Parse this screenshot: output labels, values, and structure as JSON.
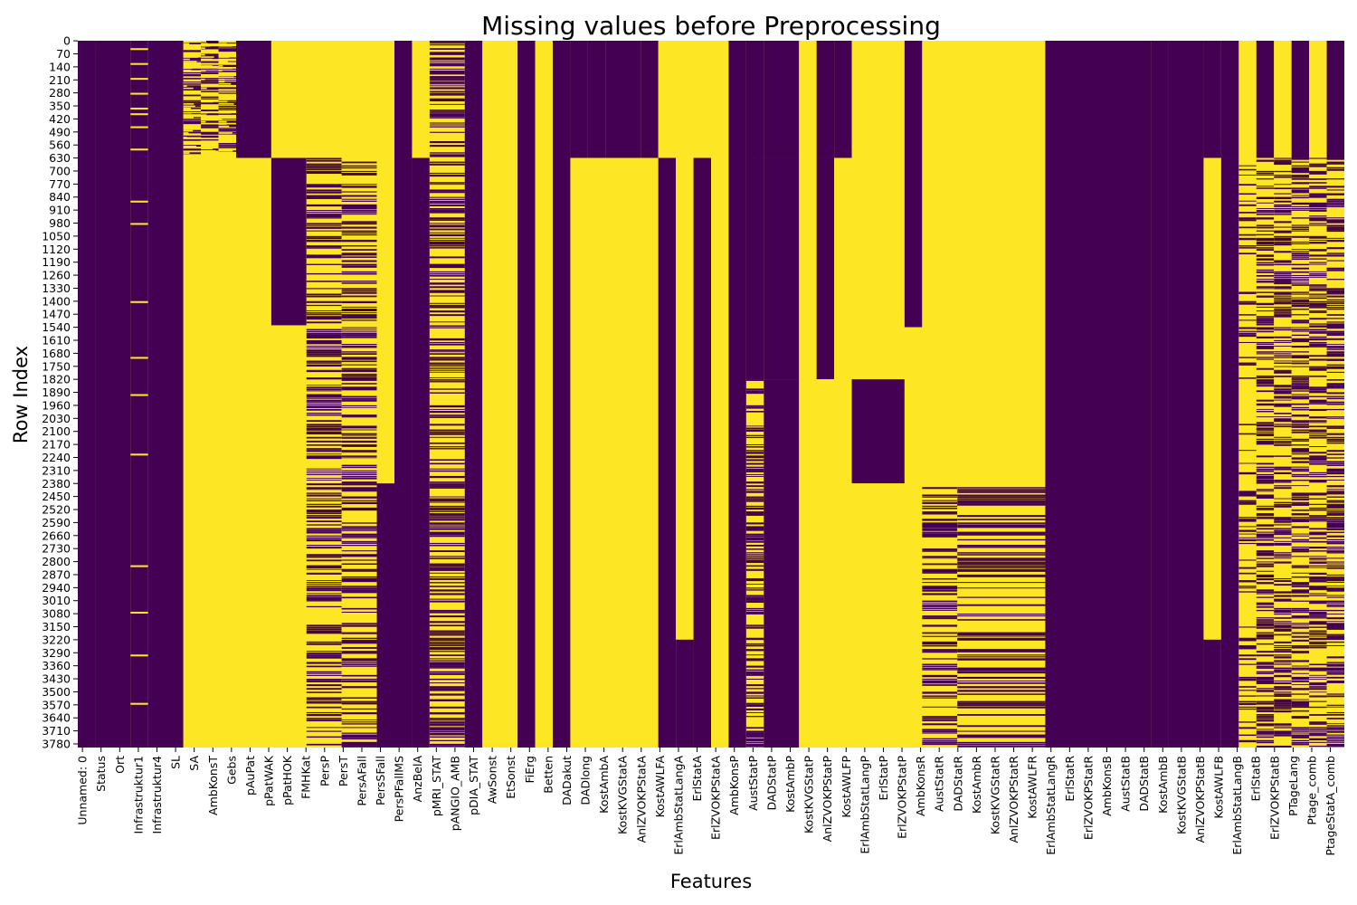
{
  "chart_data": {
    "type": "heatmap",
    "title": "Missing values before Preprocessing",
    "xlabel": "Features",
    "ylabel": "Row Index",
    "n_rows": 3800,
    "colors": {
      "missing": "#fde725",
      "present": "#440154"
    },
    "ylim": [
      0,
      3800
    ],
    "y_tick_step": 70,
    "x_tick_labels": [
      "Unnamed: 0",
      "Status",
      "Ort",
      "Infrastruktur1",
      "Infrastruktur4",
      "SL",
      "SA",
      "AmbKonsT",
      "Gebs",
      "pAuPat",
      "pPatWAK",
      "pPatHOK",
      "FMHKat",
      "PersP",
      "PersT",
      "PersAFall",
      "PersSFall",
      "PersPFallMS",
      "AnzBelA",
      "pMRI_STAT",
      "pANGIO_AMB",
      "pDIA_STAT",
      "AwSonst",
      "EtSonst",
      "FiErg",
      "Betten",
      "DADakut",
      "DADlong",
      "KostAmbA",
      "KostKVGStatA",
      "AnlZVOKPStatA",
      "KostAWLFA",
      "ErlAmbStatLangA",
      "ErlStatA",
      "ErlZVOKPStatA",
      "AmbKonsP",
      "AustStatP",
      "DADStatP",
      "KostAmbP",
      "KostKVGStatP",
      "AnlZVOKPStatP",
      "KostAWLFP",
      "ErlAmbStatLangP",
      "ErlStatP",
      "ErlZVOKPStatP",
      "AmbKonsR",
      "AustStatR",
      "DADStatR",
      "KostAmbR",
      "KostKVGStatR",
      "AnlZVOKPStatR",
      "KostAWLFR",
      "ErlAmbStatLangR",
      "ErlStatR",
      "ErlZVOKPStatR",
      "AmbKonsB",
      "AustStatB",
      "DADStatB",
      "KostAmbB",
      "KostKVGStatB",
      "AnlZVOKPStatB",
      "KostAWLFB",
      "ErlAmbStatLangB",
      "ErlStatB",
      "ErlZVOKPStatB",
      "PTageLang",
      "Ptage_comb",
      "PtageStatA_comb"
    ],
    "columns": [
      {
        "c": [
          0,
          1
        ],
        "s": [
          [
            0,
            3800,
            "present"
          ]
        ]
      },
      {
        "c": [
          1,
          3
        ],
        "s": [
          [
            0,
            3800,
            "present"
          ]
        ]
      },
      {
        "c": [
          3,
          4
        ],
        "s": [
          [
            0,
            3800,
            "present"
          ],
          [
            40,
            50,
            "missing"
          ],
          [
            120,
            130,
            "missing"
          ],
          [
            200,
            210,
            "missing"
          ],
          [
            280,
            290,
            "missing"
          ],
          [
            360,
            370,
            "missing"
          ],
          [
            390,
            400,
            "missing"
          ],
          [
            460,
            470,
            "missing"
          ],
          [
            580,
            590,
            "missing"
          ],
          [
            860,
            870,
            "missing"
          ],
          [
            980,
            990,
            "missing"
          ],
          [
            1400,
            1410,
            "missing"
          ],
          [
            1700,
            1710,
            "missing"
          ],
          [
            1900,
            1910,
            "missing"
          ],
          [
            2220,
            2230,
            "missing"
          ],
          [
            2820,
            2830,
            "missing"
          ],
          [
            3070,
            3080,
            "missing"
          ],
          [
            3300,
            3310,
            "missing"
          ],
          [
            3560,
            3570,
            "missing"
          ]
        ],
        "noise": "light"
      },
      {
        "c": [
          4,
          6
        ],
        "s": [
          [
            0,
            3800,
            "present"
          ]
        ]
      },
      {
        "c": [
          6,
          7
        ],
        "s": [
          [
            0,
            610,
            "noise-heavy"
          ],
          [
            610,
            3800,
            "missing"
          ]
        ],
        "noise": "stripes"
      },
      {
        "c": [
          7,
          8
        ],
        "s": [
          [
            0,
            610,
            "noise-heavy"
          ],
          [
            610,
            3800,
            "missing"
          ]
        ],
        "noise": "stripes"
      },
      {
        "c": [
          8,
          9
        ],
        "s": [
          [
            0,
            610,
            "noise-heavy"
          ],
          [
            610,
            3800,
            "missing"
          ]
        ],
        "noise": "stripes"
      },
      {
        "c": [
          9,
          11
        ],
        "s": [
          [
            0,
            630,
            "present"
          ],
          [
            630,
            1530,
            "missing"
          ],
          [
            1530,
            3800,
            "missing"
          ]
        ]
      },
      {
        "c": [
          11,
          13
        ],
        "s": [
          [
            0,
            630,
            "missing"
          ],
          [
            630,
            1530,
            "present"
          ],
          [
            1530,
            3800,
            "missing"
          ]
        ]
      },
      {
        "c": [
          13,
          15
        ],
        "s": [
          [
            0,
            630,
            "missing"
          ],
          [
            630,
            3800,
            "noise-heavy"
          ]
        ]
      },
      {
        "c": [
          15,
          17
        ],
        "s": [
          [
            0,
            630,
            "missing"
          ],
          [
            630,
            3800,
            "noise-heavy"
          ]
        ]
      },
      {
        "c": [
          17,
          18
        ],
        "s": [
          [
            0,
            630,
            "missing"
          ],
          [
            630,
            2380,
            "missing"
          ],
          [
            2380,
            3800,
            "present"
          ]
        ]
      },
      {
        "c": [
          18,
          19
        ],
        "s": [
          [
            0,
            3800,
            "present"
          ]
        ]
      },
      {
        "c": [
          19,
          20
        ],
        "s": [
          [
            0,
            630,
            "missing"
          ],
          [
            630,
            3800,
            "present"
          ]
        ]
      },
      {
        "c": [
          20,
          22
        ],
        "s": [
          [
            0,
            3800,
            "noise-heavy"
          ]
        ]
      },
      {
        "c": [
          22,
          23
        ],
        "s": [
          [
            0,
            3800,
            "present"
          ]
        ]
      },
      {
        "c": [
          23,
          25
        ],
        "s": [
          [
            0,
            3800,
            "missing"
          ]
        ]
      },
      {
        "c": [
          25,
          26
        ],
        "s": [
          [
            0,
            3800,
            "present"
          ]
        ]
      },
      {
        "c": [
          26,
          27
        ],
        "s": [
          [
            0,
            3800,
            "missing"
          ]
        ]
      },
      {
        "c": [
          27,
          28
        ],
        "s": [
          [
            0,
            3800,
            "present"
          ]
        ]
      },
      {
        "c": [
          28,
          29
        ],
        "s": [
          [
            0,
            630,
            "present"
          ],
          [
            630,
            3800,
            "missing"
          ]
        ]
      },
      {
        "c": [
          29,
          30
        ],
        "s": [
          [
            0,
            630,
            "present"
          ],
          [
            630,
            3800,
            "missing"
          ]
        ]
      },
      {
        "c": [
          30,
          32
        ],
        "s": [
          [
            0,
            630,
            "present"
          ],
          [
            630,
            3800,
            "missing"
          ]
        ]
      },
      {
        "c": [
          32,
          33
        ],
        "s": [
          [
            0,
            630,
            "present"
          ],
          [
            630,
            3800,
            "missing"
          ]
        ]
      },
      {
        "c": [
          33,
          34
        ],
        "s": [
          [
            0,
            630,
            "missing"
          ],
          [
            630,
            3800,
            "present"
          ]
        ]
      },
      {
        "c": [
          34,
          35
        ],
        "s": [
          [
            0,
            630,
            "missing"
          ],
          [
            630,
            3220,
            "missing"
          ],
          [
            3220,
            3800,
            "present"
          ]
        ]
      },
      {
        "c": [
          35,
          36
        ],
        "s": [
          [
            0,
            630,
            "missing"
          ],
          [
            630,
            3800,
            "present"
          ]
        ]
      },
      {
        "c": [
          36,
          37
        ],
        "s": [
          [
            0,
            3800,
            "missing"
          ]
        ]
      },
      {
        "c": [
          37,
          38
        ],
        "s": [
          [
            0,
            3800,
            "present"
          ]
        ]
      },
      {
        "c": [
          38,
          39
        ],
        "s": [
          [
            0,
            630,
            "present"
          ],
          [
            630,
            1820,
            "present"
          ],
          [
            1820,
            3800,
            "noise-heavy"
          ]
        ]
      },
      {
        "c": [
          39,
          41
        ],
        "s": [
          [
            0,
            630,
            "present"
          ],
          [
            630,
            1820,
            "present"
          ],
          [
            1820,
            3800,
            "present"
          ]
        ]
      },
      {
        "c": [
          41,
          42
        ],
        "s": [
          [
            0,
            3800,
            "missing"
          ]
        ]
      },
      {
        "c": [
          42,
          43
        ],
        "s": [
          [
            0,
            630,
            "present"
          ],
          [
            630,
            1820,
            "present"
          ],
          [
            1820,
            3800,
            "missing"
          ]
        ]
      },
      {
        "c": [
          43,
          44
        ],
        "s": [
          [
            0,
            630,
            "present"
          ],
          [
            630,
            1820,
            "missing"
          ],
          [
            1820,
            3800,
            "missing"
          ]
        ]
      },
      {
        "c": [
          44,
          47
        ],
        "s": [
          [
            0,
            1820,
            "missing"
          ],
          [
            1820,
            2380,
            "present"
          ],
          [
            2380,
            3800,
            "missing"
          ]
        ]
      },
      {
        "c": [
          47,
          48
        ],
        "s": [
          [
            0,
            1540,
            "present"
          ],
          [
            1540,
            3800,
            "missing"
          ]
        ]
      },
      {
        "c": [
          48,
          50
        ],
        "s": [
          [
            0,
            2380,
            "missing"
          ],
          [
            2380,
            3800,
            "noise-heavy"
          ]
        ]
      },
      {
        "c": [
          50,
          55
        ],
        "s": [
          [
            0,
            2380,
            "missing"
          ],
          [
            2380,
            3800,
            "noise-heavy"
          ]
        ]
      },
      {
        "c": [
          55,
          61
        ],
        "s": [
          [
            0,
            3800,
            "present"
          ]
        ]
      },
      {
        "c": [
          61,
          62
        ],
        "s": [
          [
            0,
            3800,
            "present"
          ]
        ]
      },
      {
        "c": [
          62,
          64
        ],
        "s": [
          [
            0,
            3800,
            "present"
          ]
        ]
      },
      {
        "c": [
          64,
          65
        ],
        "s": [
          [
            0,
            630,
            "present"
          ],
          [
            630,
            3220,
            "missing"
          ],
          [
            3220,
            3800,
            "present"
          ]
        ]
      },
      {
        "c": [
          65,
          66
        ],
        "s": [
          [
            0,
            630,
            "present"
          ],
          [
            630,
            3800,
            "present"
          ]
        ]
      },
      {
        "c": [
          66,
          67
        ],
        "s": [
          [
            0,
            630,
            "missing"
          ],
          [
            630,
            3800,
            "noise-light"
          ]
        ]
      },
      {
        "c": [
          67,
          68
        ],
        "s": [
          [
            0,
            630,
            "present"
          ],
          [
            630,
            3800,
            "noise-heavy"
          ]
        ]
      },
      {
        "c": [
          68,
          69
        ],
        "s": [
          [
            0,
            630,
            "missing"
          ],
          [
            630,
            3800,
            "noise-heavy"
          ]
        ]
      },
      {
        "c": [
          69,
          70
        ],
        "s": [
          [
            0,
            630,
            "present"
          ],
          [
            630,
            3800,
            "noise-heavy"
          ]
        ]
      },
      {
        "c": [
          70,
          71
        ],
        "s": [
          [
            0,
            630,
            "missing"
          ],
          [
            630,
            3800,
            "noise-heavy"
          ]
        ]
      },
      {
        "c": [
          71,
          72
        ],
        "s": [
          [
            0,
            630,
            "present"
          ],
          [
            630,
            3800,
            "noise-heavy"
          ]
        ]
      }
    ]
  }
}
